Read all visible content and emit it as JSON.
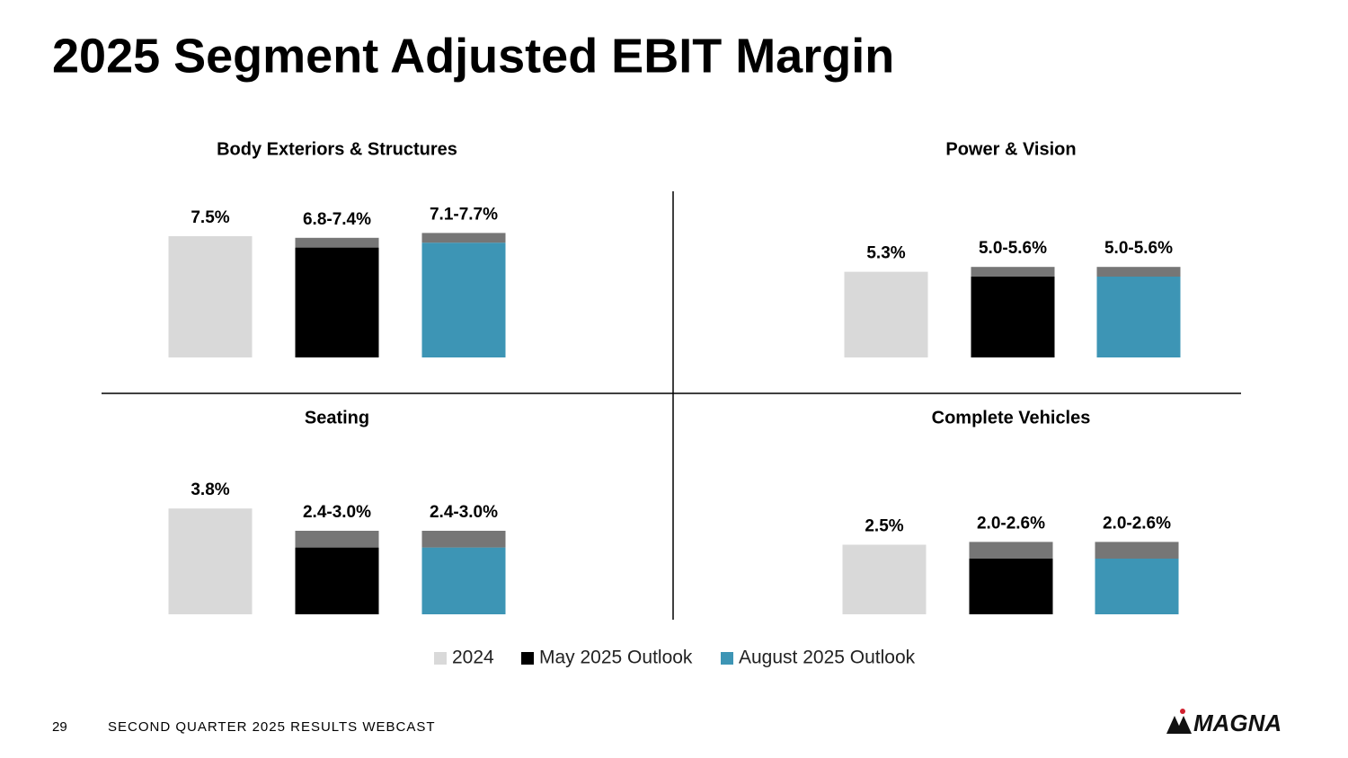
{
  "title": "2025 Segment Adjusted EBIT Margin",
  "legend": [
    {
      "name": "2024",
      "color": "#d9d9d9"
    },
    {
      "name": "May 2025 Outlook",
      "color": "#000000"
    },
    {
      "name": "August 2025 Outlook",
      "color": "#3d95b5"
    }
  ],
  "chart_data": [
    {
      "type": "bar",
      "title": "Body Exteriors & Structures",
      "values": [
        7.5,
        6.8,
        7.1
      ],
      "range_high": [
        null,
        7.4,
        7.7
      ],
      "value_labels": [
        "7.5%",
        "6.8-7.4%",
        "7.1-7.7%"
      ],
      "range_color": "#767676",
      "ylim": [
        0,
        10
      ]
    },
    {
      "type": "bar",
      "title": "Power & Vision",
      "values": [
        5.3,
        5.0,
        5.0
      ],
      "range_high": [
        null,
        5.6,
        5.6
      ],
      "value_labels": [
        "5.3%",
        "5.0-5.6%",
        "5.0-5.6%"
      ],
      "range_color": "#767676",
      "ylim": [
        0,
        10
      ]
    },
    {
      "type": "bar",
      "title": "Seating",
      "values": [
        3.8,
        2.4,
        2.4
      ],
      "range_high": [
        null,
        3.0,
        3.0
      ],
      "value_labels": [
        "3.8%",
        "2.4-3.0%",
        "2.4-3.0%"
      ],
      "range_color": "#767676",
      "ylim": [
        0,
        6
      ]
    },
    {
      "type": "bar",
      "title": "Complete Vehicles",
      "values": [
        2.5,
        2.0,
        2.0
      ],
      "range_high": [
        null,
        2.6,
        2.6
      ],
      "value_labels": [
        "2.5%",
        "2.0-2.6%",
        "2.0-2.6%"
      ],
      "range_color": "#767676",
      "ylim": [
        0,
        6
      ]
    }
  ],
  "footer": {
    "page": "29",
    "text": "SECOND QUARTER 2025 RESULTS WEBCAST",
    "logo": "MAGNA"
  }
}
